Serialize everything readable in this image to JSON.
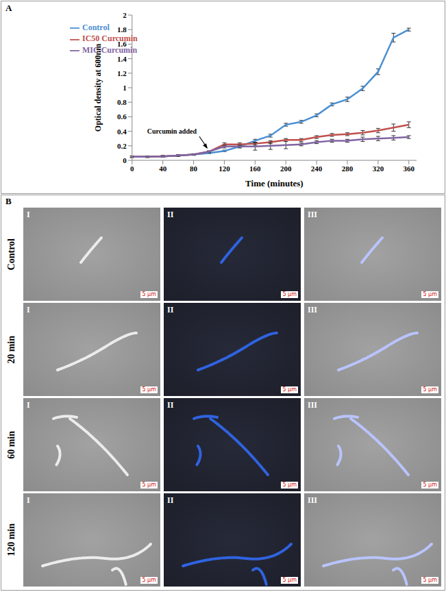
{
  "chart_data": {
    "type": "line",
    "x_label": "Time (minutes)",
    "y_label": "Optical density at 600nm",
    "x": [
      0,
      20,
      40,
      60,
      80,
      100,
      120,
      140,
      160,
      180,
      200,
      220,
      240,
      260,
      280,
      300,
      320,
      340,
      360
    ],
    "series": [
      {
        "name": "Control",
        "color": "#4a8fd4",
        "values": [
          0.05,
          0.05,
          0.055,
          0.065,
          0.08,
          0.1,
          0.13,
          0.19,
          0.27,
          0.34,
          0.49,
          0.53,
          0.62,
          0.77,
          0.84,
          0.99,
          1.22,
          1.69,
          1.8
        ],
        "errors": [
          0.01,
          0.01,
          0.01,
          0.01,
          0.01,
          0.01,
          0.01,
          0.01,
          0.02,
          0.02,
          0.02,
          0.02,
          0.02,
          0.02,
          0.03,
          0.03,
          0.04,
          0.06,
          0.02
        ]
      },
      {
        "name": "IC50 Curcumin",
        "color": "#c0504d",
        "values": [
          0.05,
          0.05,
          0.055,
          0.065,
          0.08,
          0.12,
          0.22,
          0.22,
          0.23,
          0.25,
          0.28,
          0.28,
          0.32,
          0.35,
          0.36,
          0.38,
          0.41,
          0.45,
          0.49
        ],
        "errors": [
          0.01,
          0.01,
          0.01,
          0.01,
          0.01,
          0.01,
          0.02,
          0.02,
          0.02,
          0.02,
          0.02,
          0.02,
          0.02,
          0.02,
          0.02,
          0.03,
          0.03,
          0.05,
          0.04
        ]
      },
      {
        "name": "MIC Curcumin",
        "color": "#8064a2",
        "values": [
          0.05,
          0.05,
          0.055,
          0.065,
          0.08,
          0.12,
          0.19,
          0.19,
          0.19,
          0.2,
          0.21,
          0.22,
          0.25,
          0.27,
          0.27,
          0.29,
          0.3,
          0.31,
          0.32
        ],
        "errors": [
          0.01,
          0.01,
          0.01,
          0.01,
          0.01,
          0.01,
          0.02,
          0.02,
          0.05,
          0.05,
          0.05,
          0.02,
          0.02,
          0.02,
          0.02,
          0.03,
          0.03,
          0.03,
          0.02
        ]
      }
    ],
    "xlim": [
      0,
      370
    ],
    "xticks": [
      0,
      40,
      80,
      120,
      160,
      200,
      240,
      280,
      320,
      360
    ],
    "ylim": [
      0,
      2
    ],
    "yticks": [
      0,
      0.2,
      0.4,
      0.6,
      0.8,
      1,
      1.2,
      1.4,
      1.6,
      1.8,
      2
    ],
    "grid": false,
    "legend": "upper left",
    "marker": "none",
    "line_style": "solid",
    "annotations": [
      {
        "text": "Curcumin added",
        "x": 100,
        "y": 0.12
      }
    ]
  },
  "figure": {
    "panel_labels": [
      "A",
      "B"
    ],
    "rows": [
      "Control",
      "20 min",
      "60 min",
      "120 min"
    ],
    "columns": [
      "I",
      "II",
      "III"
    ],
    "scale_bar": "5 μm"
  }
}
